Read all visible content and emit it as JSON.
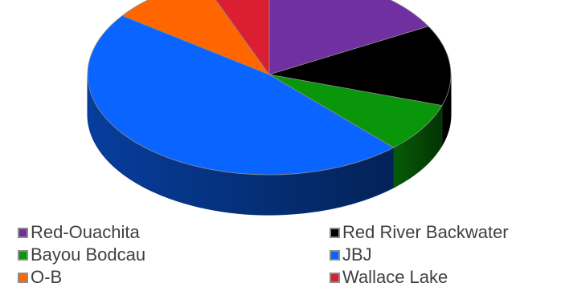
{
  "chart_data": {
    "type": "pie",
    "style": "3d",
    "categories": [
      "Red-Ouachita",
      "Red River Backwater",
      "Bayou Bodcau",
      "JBJ",
      "O-B",
      "Wallace Lake"
    ],
    "values": [
      17,
      13,
      8,
      47,
      9,
      6
    ],
    "unit": "",
    "colors": [
      "#7030a0",
      "#000000",
      "#0a960a",
      "#0a64ff",
      "#ff6600",
      "#dc1e32"
    ],
    "legend_position": "bottom",
    "legend_columns": 2
  }
}
